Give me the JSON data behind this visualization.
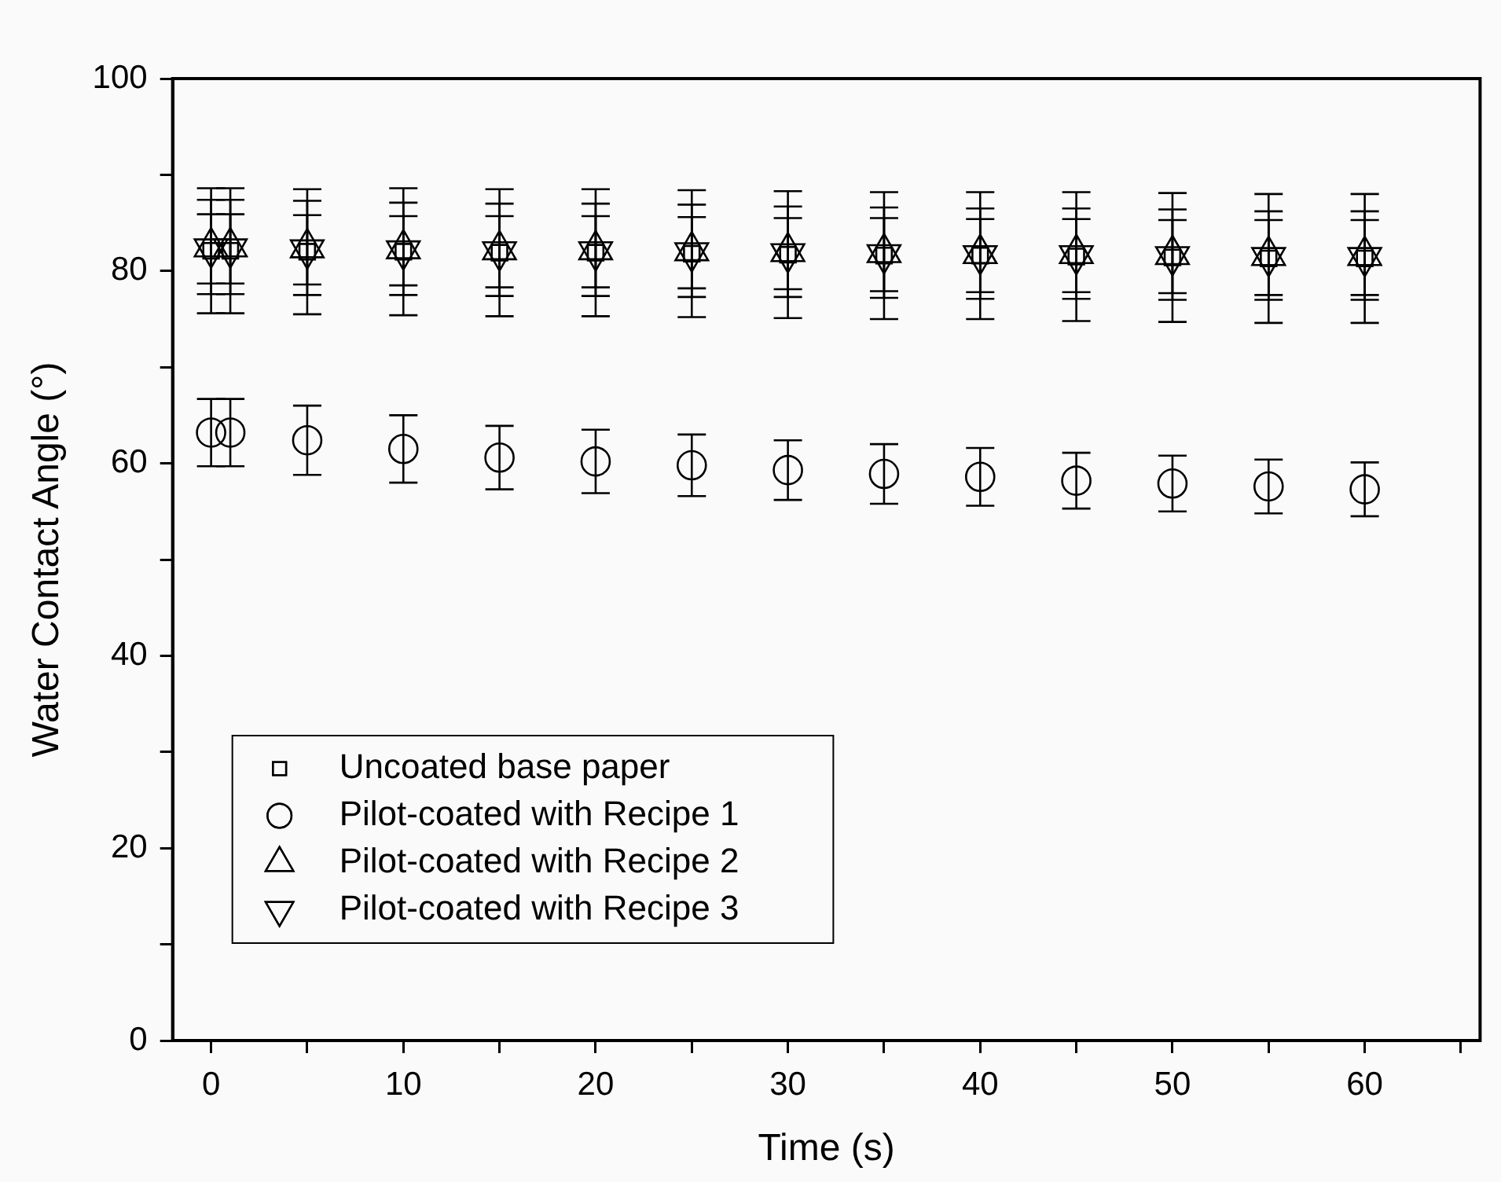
{
  "chart_data": {
    "type": "scatter",
    "xlabel": "Time (s)",
    "ylabel": "Water Contact Angle (°)",
    "x": [
      0,
      1,
      5,
      10,
      15,
      20,
      25,
      30,
      35,
      40,
      45,
      50,
      55,
      60
    ],
    "xlim": [
      -2,
      66
    ],
    "xticks": [
      0,
      {
        "value": 5,
        "label": null
      },
      10,
      {
        "value": 15,
        "label": null
      },
      20,
      {
        "value": 25,
        "label": null
      },
      30,
      {
        "value": 35,
        "label": null
      },
      40,
      {
        "value": 45,
        "label": null
      },
      50,
      {
        "value": 55,
        "label": null
      },
      60,
      {
        "value": 65,
        "label": null
      }
    ],
    "ylim": [
      0,
      100
    ],
    "yticks": [
      0,
      {
        "value": 10,
        "label": null
      },
      20,
      {
        "value": 30,
        "label": null
      },
      40,
      {
        "value": 50,
        "label": null
      },
      60,
      {
        "value": 70,
        "label": null
      },
      80,
      {
        "value": 90,
        "label": null
      },
      100
    ],
    "grid": false,
    "legend": "bottom left",
    "series": [
      {
        "name": "Uncoated base paper",
        "color": "#000000",
        "marker": "square",
        "values": [
          82.1,
          82.1,
          82.0,
          82.0,
          81.9,
          81.9,
          81.8,
          81.7,
          81.6,
          81.6,
          81.5,
          81.4,
          81.3,
          81.3
        ],
        "errors": [
          6.5,
          6.5,
          6.5,
          6.6,
          6.6,
          6.6,
          6.6,
          6.6,
          6.6,
          6.6,
          6.7,
          6.7,
          6.7,
          6.7
        ]
      },
      {
        "name": "Pilot-coated with Recipe 1",
        "color": "#000000",
        "marker": "circle",
        "values": [
          63.2,
          63.2,
          62.4,
          61.5,
          60.6,
          60.2,
          59.8,
          59.3,
          58.9,
          58.6,
          58.2,
          57.9,
          57.6,
          57.3
        ],
        "errors": [
          3.5,
          3.5,
          3.6,
          3.5,
          3.3,
          3.3,
          3.2,
          3.1,
          3.1,
          3.0,
          2.9,
          2.9,
          2.8,
          2.8
        ]
      },
      {
        "name": "Pilot-coated with Recipe 2",
        "color": "#000000",
        "marker": "triangle",
        "values": [
          82.5,
          82.5,
          82.4,
          82.3,
          82.2,
          82.2,
          82.1,
          82.0,
          81.9,
          81.8,
          81.8,
          81.7,
          81.6,
          81.6
        ],
        "errors": [
          4.9,
          4.9,
          4.9,
          4.8,
          4.8,
          4.8,
          4.8,
          4.7,
          4.7,
          4.7,
          4.7,
          4.7,
          4.6,
          4.6
        ]
      },
      {
        "name": "Pilot-coated with Recipe 3",
        "color": "#000000",
        "marker": "triangle-down",
        "values": [
          82.3,
          82.3,
          82.2,
          82.1,
          82.0,
          82.0,
          81.9,
          81.8,
          81.7,
          81.6,
          81.6,
          81.5,
          81.4,
          81.4
        ],
        "errors": [
          3.6,
          3.6,
          3.6,
          3.6,
          3.7,
          3.7,
          3.7,
          3.7,
          3.8,
          3.8,
          3.8,
          3.8,
          3.9,
          3.9
        ]
      }
    ]
  }
}
